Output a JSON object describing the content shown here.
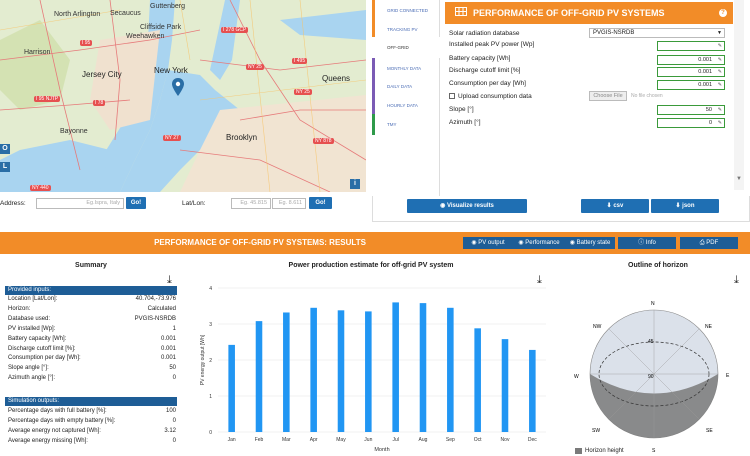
{
  "map": {
    "labels": [
      "North Arlington",
      "Secaucus",
      "Guttenberg",
      "Cliffside Park",
      "Weehawken",
      "Harrison",
      "Jersey City",
      "New York",
      "Bayonne",
      "Brooklyn",
      "Queens"
    ],
    "highways": [
      "I 95",
      "I 78",
      "I 278 GCP",
      "NY 25",
      "I 495",
      "NY 25",
      "NY 27",
      "NY 878",
      "NY 440",
      "I 95 NJTP"
    ]
  },
  "address": {
    "address_label": "Address:",
    "address_placeholder": "Eg.Ispra, Italy",
    "go_label": "Go!",
    "latlon_label": "Lat/Lon:",
    "lat_placeholder": "Eg. 45.815",
    "lon_placeholder": "Eg. 8.611",
    "go2_label": "Go!"
  },
  "tabs": [
    "GRID CONNECTED",
    "TRACKING PV",
    "OFF-GRID",
    "MONTHLY DATA",
    "DAILY DATA",
    "HOURLY DATA",
    "TMY"
  ],
  "form": {
    "title": "PERFORMANCE OF OFF-GRID PV SYSTEMS",
    "help": "?",
    "solar_db_label": "Solar radiation database",
    "solar_db_value": "PVGIS-NSRDB",
    "peak_power_label": "Installed peak PV power [Wp]",
    "peak_power_value": "",
    "battery_label": "Battery capacity [Wh]",
    "battery_value": "0.001",
    "discharge_label": "Discharge cutoff limit [%]",
    "discharge_value": "0.001",
    "consumption_label": "Consumption per day [Wh]",
    "consumption_value": "0.001",
    "upload_label": "Upload consumption data",
    "choose_file": "Choose File",
    "no_file": "No file chosen",
    "slope_label": "Slope [°]",
    "slope_value": "50",
    "azimuth_label": "Azimuth [°]",
    "azimuth_value": "0"
  },
  "actions": {
    "visualize": "Visualize results",
    "csv": "csv",
    "json": "json"
  },
  "results": {
    "title": "PERFORMANCE OF OFF-GRID PV SYSTEMS: RESULTS",
    "pv_output": "PV output",
    "performance": "Performance",
    "battery_state": "Battery state",
    "info": "Info",
    "pdf": "PDF"
  },
  "summary": {
    "title": "Summary",
    "inputs_header": "Provided inputs:",
    "inputs": [
      {
        "k": "Location [Lat/Lon]:",
        "v": "40.704,-73.976"
      },
      {
        "k": "Horizon:",
        "v": "Calculated"
      },
      {
        "k": "Database used:",
        "v": "PVGIS-NSRDB"
      },
      {
        "k": "PV installed [Wp]:",
        "v": "1"
      },
      {
        "k": "Battery capacity [Wh]:",
        "v": "0.001"
      },
      {
        "k": "Discharge cutoff limit [%]:",
        "v": "0.001"
      },
      {
        "k": "Consumption per day [Wh]:",
        "v": "0.001"
      },
      {
        "k": "Slope angle [°]:",
        "v": "50"
      },
      {
        "k": "Azimuth angle [°]:",
        "v": "0"
      }
    ],
    "outputs_header": "Simulation outputs:",
    "outputs": [
      {
        "k": "Percentage days with full battery [%]:",
        "v": "100"
      },
      {
        "k": "Percentage days with empty battery [%]:",
        "v": "0"
      },
      {
        "k": "Average energy not captured [Wh]:",
        "v": "3.12"
      },
      {
        "k": "Average energy missing [Wh]:",
        "v": "0"
      }
    ]
  },
  "chart_data": {
    "type": "bar",
    "title": "Power production estimate for off-grid PV system",
    "xlabel": "Month",
    "ylabel": "PV energy output [Wh]",
    "categories": [
      "Jan",
      "Feb",
      "Mar",
      "Apr",
      "May",
      "Jun",
      "Jul",
      "Aug",
      "Sep",
      "Oct",
      "Nov",
      "Dec"
    ],
    "values": [
      2.42,
      3.08,
      3.32,
      3.45,
      3.38,
      3.35,
      3.6,
      3.58,
      3.45,
      2.88,
      2.58,
      2.28
    ],
    "ylim": [
      0,
      4
    ],
    "yticks": [
      "0",
      "1",
      "2",
      "3",
      "4"
    ],
    "grid": true,
    "color": "#2196f3"
  },
  "horizon": {
    "title": "Outline of horizon",
    "directions": [
      "N",
      "NE",
      "E",
      "SE",
      "S",
      "SW",
      "W",
      "NW"
    ],
    "rings": [
      "45",
      "90"
    ],
    "legend": "Horizon height"
  }
}
